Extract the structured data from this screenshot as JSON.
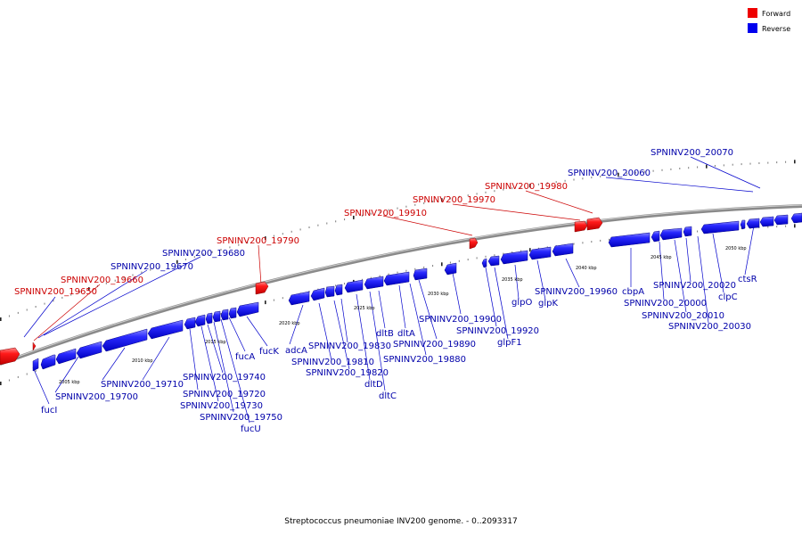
{
  "legend": {
    "forward_label": "Forward",
    "reverse_label": "Reverse",
    "forward_color": "#ee0000",
    "reverse_color": "#0000ee"
  },
  "caption": "Streptococcus pneumoniae INV200 genome. - 0..2093317",
  "scale": {
    "unit": "kbp",
    "ticks": [
      "2005",
      "2010",
      "2015",
      "2020",
      "2025",
      "2030",
      "2035",
      "2040",
      "2045",
      "2050"
    ]
  },
  "genes": [
    {
      "label": "SPNINV200_19650",
      "strand": "forward"
    },
    {
      "label": "SPNINV200_19660",
      "strand": "forward"
    },
    {
      "label": "SPNINV200_19670",
      "strand": "reverse"
    },
    {
      "label": "SPNINV200_19680",
      "strand": "reverse"
    },
    {
      "label": "SPNINV200_19790",
      "strand": "forward"
    },
    {
      "label": "SPNINV200_19910",
      "strand": "forward"
    },
    {
      "label": "SPNINV200_19970",
      "strand": "forward"
    },
    {
      "label": "SPNINV200_19980",
      "strand": "forward"
    },
    {
      "label": "SPNINV200_20060",
      "strand": "reverse"
    },
    {
      "label": "SPNINV200_20070",
      "strand": "reverse"
    },
    {
      "label": "fucI",
      "strand": "reverse"
    },
    {
      "label": "SPNINV200_19700",
      "strand": "reverse"
    },
    {
      "label": "SPNINV200_19710",
      "strand": "reverse"
    },
    {
      "label": "SPNINV200_19720",
      "strand": "reverse"
    },
    {
      "label": "SPNINV200_19730",
      "strand": "reverse"
    },
    {
      "label": "SPNINV200_19740",
      "strand": "reverse"
    },
    {
      "label": "SPNINV200_19750",
      "strand": "reverse"
    },
    {
      "label": "fucU",
      "strand": "reverse"
    },
    {
      "label": "fucA",
      "strand": "reverse"
    },
    {
      "label": "fucK",
      "strand": "reverse"
    },
    {
      "label": "adcA",
      "strand": "reverse"
    },
    {
      "label": "SPNINV200_19810",
      "strand": "reverse"
    },
    {
      "label": "SPNINV200_19820",
      "strand": "reverse"
    },
    {
      "label": "SPNINV200_19830",
      "strand": "reverse"
    },
    {
      "label": "dltD",
      "strand": "reverse"
    },
    {
      "label": "dltC",
      "strand": "reverse"
    },
    {
      "label": "dltB",
      "strand": "reverse"
    },
    {
      "label": "dltA",
      "strand": "reverse"
    },
    {
      "label": "SPNINV200_19880",
      "strand": "reverse"
    },
    {
      "label": "SPNINV200_19890",
      "strand": "reverse"
    },
    {
      "label": "SPNINV200_19900",
      "strand": "reverse"
    },
    {
      "label": "SPNINV200_19920",
      "strand": "reverse"
    },
    {
      "label": "glpF1",
      "strand": "reverse"
    },
    {
      "label": "glpO",
      "strand": "reverse"
    },
    {
      "label": "glpK",
      "strand": "reverse"
    },
    {
      "label": "SPNINV200_19960",
      "strand": "reverse"
    },
    {
      "label": "cbpA",
      "strand": "reverse"
    },
    {
      "label": "SPNINV200_20000",
      "strand": "reverse"
    },
    {
      "label": "SPNINV200_20010",
      "strand": "reverse"
    },
    {
      "label": "SPNINV200_20020",
      "strand": "reverse"
    },
    {
      "label": "SPNINV200_20030",
      "strand": "reverse"
    },
    {
      "label": "clpC",
      "strand": "reverse"
    },
    {
      "label": "ctsR",
      "strand": "reverse"
    }
  ]
}
